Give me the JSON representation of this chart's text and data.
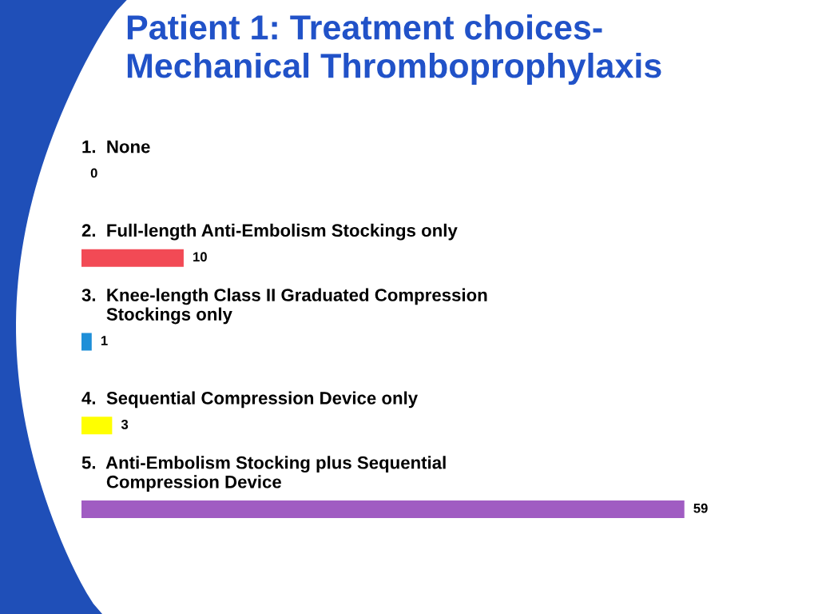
{
  "chart_data": {
    "type": "bar",
    "orientation": "horizontal",
    "title": "Patient 1: Treatment choices-\nMechanical Thromboprophylaxis",
    "categories": [
      "1.  None",
      "2.  Full-length Anti-Embolism Stockings only",
      "3.  Knee-length Class II Graduated Compression\n     Stockings only",
      "4.  Sequential Compression Device only",
      "5.  Anti-Embolism Stocking plus Sequential\n     Compression Device"
    ],
    "values": [
      0,
      10,
      1,
      3,
      59
    ],
    "colors": [
      "#c0c0c0",
      "#f24a55",
      "#1e8fd8",
      "#ffff00",
      "#a05cc2"
    ],
    "data_labels": true,
    "tick_labels": false
  }
}
